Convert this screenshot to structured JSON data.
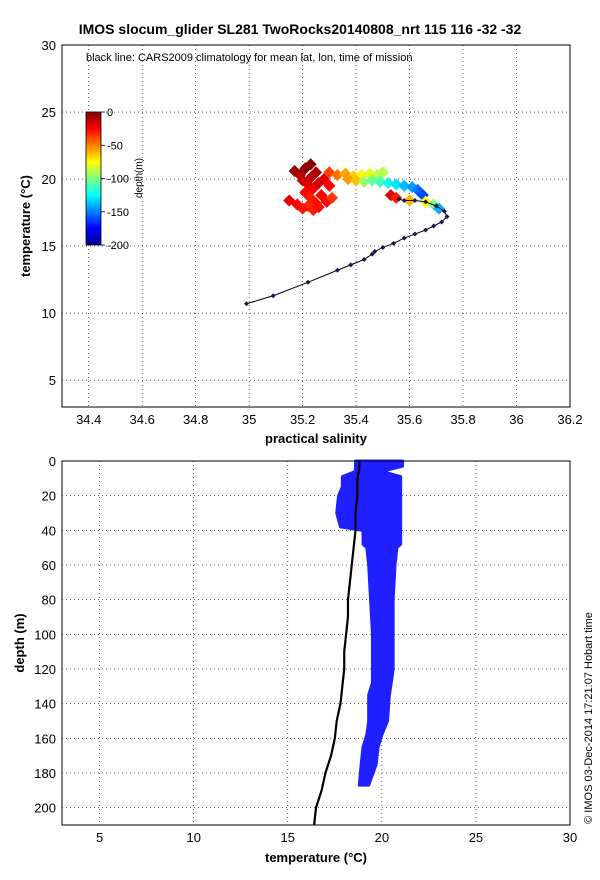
{
  "figure": {
    "title": "IMOS slocum_glider SL281 TwoRocks20140808_nrt 115  116  -32  -32",
    "credit": "© IMOS 03-Dec-2014 17:21:07 Hobart time"
  },
  "chart_data": [
    {
      "type": "scatter",
      "xlabel": "practical salinity",
      "ylabel": "temperature (°C)",
      "xlim": [
        34.3,
        36.2
      ],
      "ylim": [
        3,
        30
      ],
      "xticks": [
        34.4,
        34.6,
        34.8,
        35,
        35.2,
        35.4,
        35.6,
        35.8,
        36,
        36.2
      ],
      "yticks": [
        5,
        10,
        15,
        20,
        25,
        30
      ],
      "grid": true,
      "annotation": "black line: CARS2009 climatology for mean lat, lon, time of mission",
      "colorbar": {
        "label": "depth(m)",
        "ticks": [
          0,
          -50,
          -100,
          -150,
          -200
        ],
        "range": [
          -200,
          0
        ],
        "placement": "top-left"
      },
      "series": [
        {
          "kind": "glider",
          "marker": "filled-diamond",
          "points": [
            [
              35.17,
              20.6,
              -5
            ],
            [
              35.19,
              20.3,
              -10
            ],
            [
              35.21,
              20.8,
              -3
            ],
            [
              35.23,
              20.1,
              -12
            ],
            [
              35.25,
              20.5,
              -8
            ],
            [
              35.2,
              19.9,
              -14
            ],
            [
              35.22,
              19.6,
              -18
            ],
            [
              35.24,
              19.3,
              -22
            ],
            [
              35.26,
              19.7,
              -16
            ],
            [
              35.28,
              20.0,
              -20
            ],
            [
              35.3,
              19.5,
              -25
            ],
            [
              35.21,
              19.0,
              -26
            ],
            [
              35.23,
              18.6,
              -30
            ],
            [
              35.25,
              18.2,
              -28
            ],
            [
              35.27,
              18.8,
              -24
            ],
            [
              35.22,
              18.0,
              -32
            ],
            [
              35.24,
              17.7,
              -30
            ],
            [
              35.26,
              17.9,
              -27
            ],
            [
              35.29,
              18.3,
              -26
            ],
            [
              35.31,
              18.6,
              -35
            ],
            [
              35.15,
              18.4,
              -20
            ],
            [
              35.18,
              18.1,
              -24
            ],
            [
              35.2,
              17.8,
              -28
            ],
            [
              35.23,
              21.1,
              -2
            ],
            [
              35.3,
              20.5,
              -38
            ],
            [
              35.33,
              20.3,
              -48
            ],
            [
              35.36,
              20.4,
              -58
            ],
            [
              35.39,
              20.2,
              -66
            ],
            [
              35.42,
              20.3,
              -74
            ],
            [
              35.45,
              20.4,
              -80
            ],
            [
              35.48,
              20.3,
              -86
            ],
            [
              35.5,
              20.5,
              -90
            ],
            [
              35.37,
              20.0,
              -55
            ],
            [
              35.4,
              19.9,
              -62
            ],
            [
              35.43,
              19.8,
              -96
            ],
            [
              35.46,
              19.9,
              -104
            ],
            [
              35.49,
              19.8,
              -112
            ],
            [
              35.52,
              19.7,
              -122
            ],
            [
              35.55,
              19.6,
              -130
            ],
            [
              35.58,
              19.5,
              -138
            ],
            [
              35.61,
              19.4,
              -144
            ],
            [
              35.63,
              19.2,
              -150
            ],
            [
              35.64,
              19.0,
              -156
            ],
            [
              35.65,
              18.8,
              -160
            ],
            [
              35.53,
              18.8,
              -20
            ],
            [
              35.55,
              18.6,
              -30
            ],
            [
              35.6,
              18.4,
              -60
            ],
            [
              35.66,
              18.3,
              -75
            ],
            [
              35.69,
              18.1,
              -100
            ],
            [
              35.71,
              17.8,
              -140
            ]
          ]
        },
        {
          "kind": "climatology",
          "marker": "dot-line",
          "points": [
            [
              35.56,
              18.5
            ],
            [
              35.58,
              18.4
            ],
            [
              35.62,
              18.4
            ],
            [
              35.66,
              18.3
            ],
            [
              35.7,
              18.0
            ],
            [
              35.73,
              17.6
            ],
            [
              35.74,
              17.2
            ],
            [
              35.72,
              16.8
            ],
            [
              35.69,
              16.5
            ],
            [
              35.66,
              16.2
            ],
            [
              35.62,
              15.9
            ],
            [
              35.58,
              15.6
            ],
            [
              35.54,
              15.2
            ],
            [
              35.5,
              14.9
            ],
            [
              35.47,
              14.6
            ],
            [
              35.46,
              14.4
            ],
            [
              35.43,
              14.0
            ],
            [
              35.38,
              13.6
            ],
            [
              35.33,
              13.2
            ],
            [
              35.22,
              12.3
            ],
            [
              35.09,
              11.3
            ],
            [
              34.99,
              10.7
            ]
          ]
        }
      ]
    },
    {
      "type": "scatter",
      "xlabel": "temperature (°C)",
      "ylabel": "depth (m)",
      "xlim": [
        3,
        30
      ],
      "ylim": [
        210,
        0
      ],
      "xticks": [
        5,
        10,
        15,
        20,
        25,
        30
      ],
      "yticks": [
        0,
        20,
        40,
        60,
        80,
        100,
        120,
        140,
        160,
        180,
        200
      ],
      "grid": true,
      "series": [
        {
          "kind": "glider",
          "color": "#1f1fff",
          "profile": [
            [
              0,
              18.6,
              21.1
            ],
            [
              3,
              18.6,
              21.1
            ],
            [
              6,
              18.6,
              20.0
            ],
            [
              9,
              17.9,
              21.0
            ],
            [
              15,
              17.9,
              21.0
            ],
            [
              20,
              17.7,
              21.0
            ],
            [
              30,
              17.6,
              21.0
            ],
            [
              38,
              17.8,
              21.0
            ],
            [
              40,
              19.0,
              21.0
            ],
            [
              48,
              19.0,
              21.0
            ],
            [
              50,
              19.2,
              20.8
            ],
            [
              60,
              19.3,
              20.7
            ],
            [
              80,
              19.4,
              20.6
            ],
            [
              100,
              19.5,
              20.6
            ],
            [
              120,
              19.5,
              20.6
            ],
            [
              128,
              19.5,
              20.5
            ],
            [
              135,
              19.3,
              20.4
            ],
            [
              150,
              19.3,
              20.3
            ],
            [
              158,
              19.2,
              20.0
            ],
            [
              165,
              19.0,
              19.8
            ],
            [
              175,
              18.9,
              19.7
            ],
            [
              187,
              18.8,
              19.3
            ]
          ]
        },
        {
          "kind": "climatology",
          "color": "#000000",
          "points": [
            [
              18.8,
              0
            ],
            [
              18.8,
              5
            ],
            [
              18.7,
              10
            ],
            [
              18.7,
              20
            ],
            [
              18.6,
              30
            ],
            [
              18.6,
              40
            ],
            [
              18.5,
              50
            ],
            [
              18.4,
              60
            ],
            [
              18.3,
              70
            ],
            [
              18.2,
              80
            ],
            [
              18.2,
              90
            ],
            [
              18.1,
              100
            ],
            [
              18.0,
              110
            ],
            [
              18.0,
              120
            ],
            [
              17.9,
              130
            ],
            [
              17.8,
              140
            ],
            [
              17.6,
              150
            ],
            [
              17.5,
              160
            ],
            [
              17.3,
              170
            ],
            [
              17.0,
              180
            ],
            [
              16.8,
              190
            ],
            [
              16.5,
              200
            ],
            [
              16.4,
              210
            ]
          ]
        }
      ]
    }
  ]
}
